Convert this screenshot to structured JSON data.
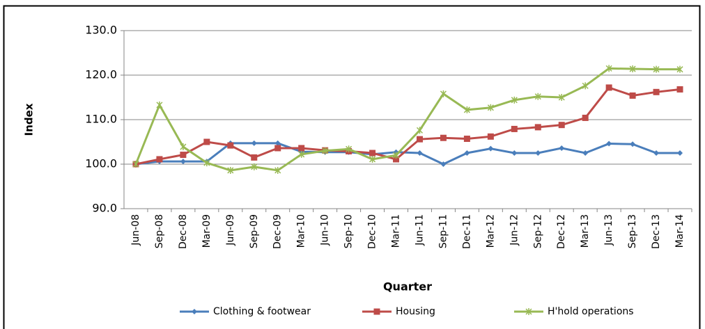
{
  "chart_data": {
    "type": "line",
    "y_label": "Index",
    "x_label": "Quarter",
    "categories": [
      "Jun-08",
      "Sep-08",
      "Dec-08",
      "Mar-09",
      "Jun-09",
      "Sep-09",
      "Dec-09",
      "Mar-10",
      "Jun-10",
      "Sep-10",
      "Dec-10",
      "Mar-11",
      "Jun-11",
      "Sep-11",
      "Dec-11",
      "Mar-12",
      "Jun-12",
      "Sep-12",
      "Dec-12",
      "Mar-13",
      "Jun-13",
      "Sep-13",
      "Dec-13",
      "Mar-14"
    ],
    "series": [
      {
        "name": "Clothing & footwear",
        "color": "#4a7ebb",
        "marker": "diamond",
        "values": [
          100,
          100.6,
          100.6,
          100.6,
          104.7,
          104.7,
          104.7,
          102.8,
          102.7,
          102.7,
          102.2,
          102.7,
          102.5,
          100,
          102.5,
          103.5,
          102.5,
          102.5,
          103.6,
          102.5,
          104.6,
          104.5,
          102.5,
          102.5
        ]
      },
      {
        "name": "Housing",
        "color": "#be4b48",
        "marker": "square",
        "values": [
          100,
          101.1,
          102.1,
          105,
          104.2,
          101.5,
          103.6,
          103.6,
          103.1,
          102.9,
          102.5,
          101.1,
          105.6,
          105.9,
          105.7,
          106.2,
          107.9,
          108.3,
          108.8,
          110.4,
          117.2,
          115.4,
          116.2,
          116.8
        ]
      },
      {
        "name": "H'hold operations",
        "color": "#98b954",
        "marker": "star",
        "values": [
          100,
          113.3,
          103.9,
          100.3,
          98.6,
          99.4,
          98.6,
          102.2,
          103.0,
          103.4,
          101.1,
          102.0,
          107.6,
          115.8,
          112.2,
          112.7,
          114.4,
          115.2,
          115.0,
          117.6,
          121.5,
          121.4,
          121.3,
          121.3
        ]
      }
    ],
    "ylim": [
      90,
      130
    ],
    "yticks": [
      {
        "value": 90,
        "label": "90.0"
      },
      {
        "value": 100,
        "label": "100.0"
      },
      {
        "value": 110,
        "label": "110.0"
      },
      {
        "value": 120,
        "label": "120.0"
      },
      {
        "value": 130,
        "label": "130.0"
      }
    ],
    "grid": true,
    "legend": "bottom"
  }
}
